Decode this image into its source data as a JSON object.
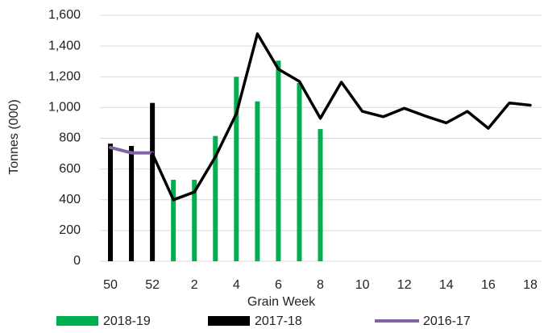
{
  "chart_data": {
    "type": "bar",
    "x_label": "Grain Week",
    "y_label": "Tonnes (000)",
    "categories": [
      "50",
      null,
      "52",
      null,
      "2",
      null,
      "4",
      null,
      "6",
      null,
      "8",
      null,
      "10",
      null,
      "12",
      null,
      "14",
      null,
      "16",
      null,
      "18"
    ],
    "series": [
      {
        "name": "2018-19",
        "type": "bar",
        "color": "#00b050",
        "values": [
          null,
          null,
          null,
          530,
          530,
          815,
          1200,
          1040,
          1305,
          1160,
          860,
          null,
          null,
          null,
          null,
          null,
          null,
          null,
          null,
          null,
          null
        ]
      },
      {
        "name": "2017-18",
        "type": "bar",
        "color": "#000000",
        "values": [
          765,
          750,
          1030,
          null,
          null,
          null,
          null,
          null,
          null,
          null,
          null,
          null,
          null,
          null,
          null,
          null,
          null,
          null,
          null,
          null,
          null
        ]
      },
      {
        "name": "2016-17",
        "type": "line",
        "color": "#8064a2",
        "values": [
          740,
          705,
          705,
          null,
          null,
          null,
          null,
          null,
          null,
          null,
          null,
          null,
          null,
          null,
          null,
          null,
          null,
          null,
          null,
          null,
          null
        ]
      },
      {
        "type": "line",
        "color": "#000000",
        "values": [
          null,
          null,
          700,
          400,
          450,
          680,
          960,
          1480,
          1250,
          1170,
          930,
          1165,
          975,
          940,
          995,
          945,
          900,
          975,
          865,
          1030,
          1015
        ]
      }
    ],
    "ylim": [
      0,
      1600
    ],
    "yticks": [
      0,
      200,
      400,
      600,
      800,
      {
        "value": 1000,
        "label": "1,000"
      },
      {
        "value": 1200,
        "label": "1,200"
      },
      {
        "value": 1400,
        "label": "1,400"
      },
      {
        "value": 1600,
        "label": "1,600"
      }
    ],
    "grid": true,
    "legend": "bottom"
  }
}
